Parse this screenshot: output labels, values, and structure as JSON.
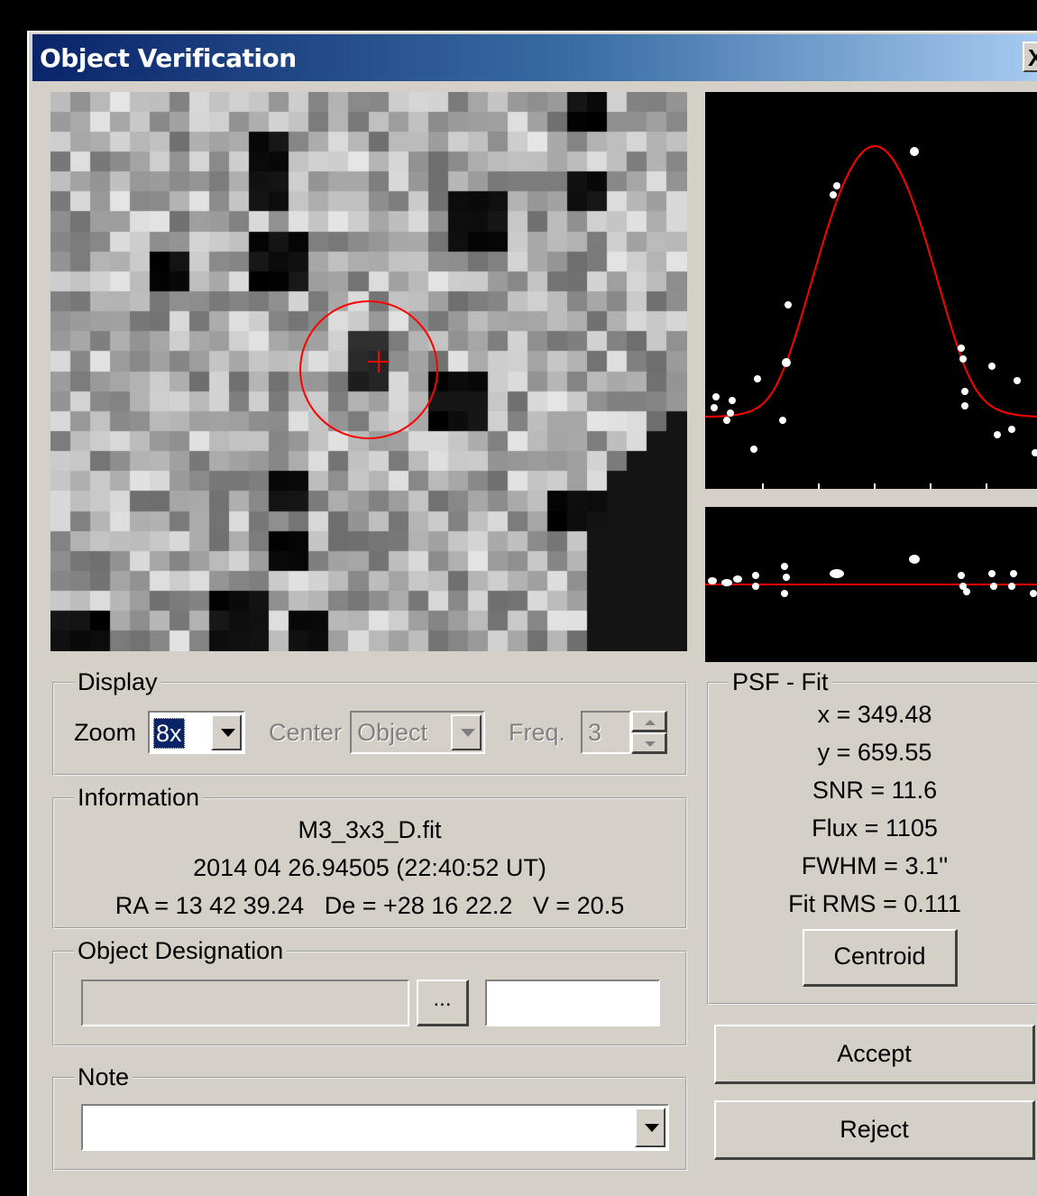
{
  "window": {
    "title": "Object Verification",
    "close_label": "X"
  },
  "display": {
    "legend": "Display",
    "zoom_label": "Zoom",
    "zoom_value": "8x",
    "center_label": "Center",
    "center_value": "Object",
    "freq_label": "Freq.",
    "freq_value": "3"
  },
  "information": {
    "legend": "Information",
    "filename": "M3_3x3_D.fit",
    "datetime": "2014 04 26.94505 (22:40:52 UT)",
    "coords": "RA = 13 42 39.24   De = +28 16 22.2   V = 20.5"
  },
  "designation": {
    "legend": "Object Designation",
    "browse_label": "...",
    "field1": "",
    "field2": ""
  },
  "note": {
    "legend": "Note",
    "value": ""
  },
  "psf": {
    "legend": "PSF - Fit",
    "x": "x = 349.48",
    "y": "y = 659.55",
    "snr": "SNR = 11.6",
    "flux": "Flux = 1105",
    "fwhm": "FWHM = 3.1''",
    "rms": "Fit RMS = 0.111",
    "centroid_label": "Centroid"
  },
  "buttons": {
    "accept": "Accept",
    "reject": "Reject"
  },
  "colors": {
    "fit_curve": "#ff0000",
    "marker": "#ff0000",
    "points": "#ffffff",
    "title_start": "#0a246a",
    "title_end": "#a6caf0"
  },
  "icons": {
    "close": "close-icon",
    "dropdown": "chevron-down-icon",
    "spin_up": "spin-up-icon",
    "spin_down": "spin-down-icon"
  }
}
